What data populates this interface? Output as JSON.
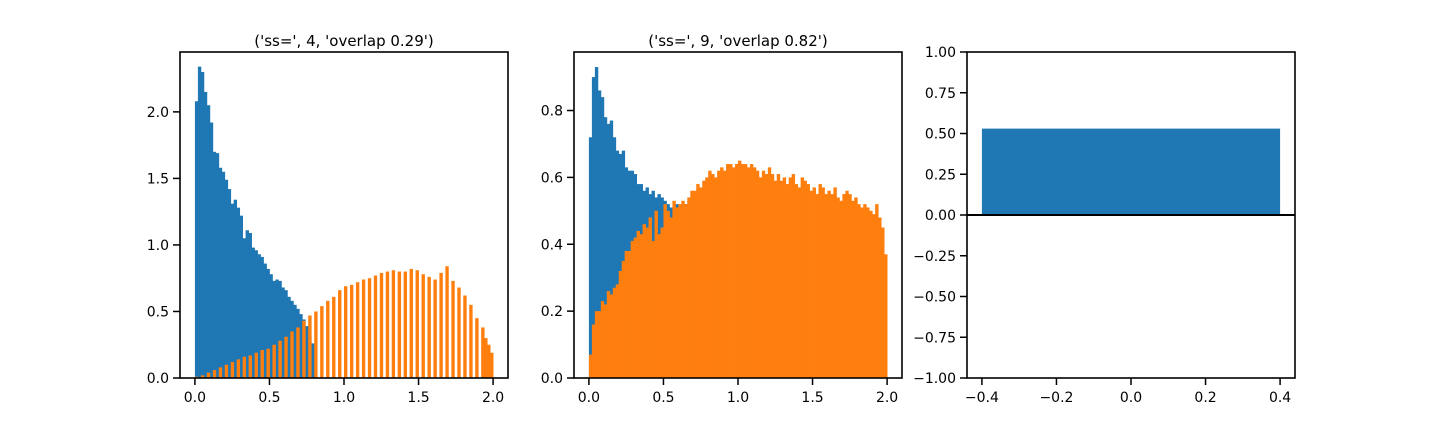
{
  "colors": {
    "blue": "#1f77b4",
    "orange": "#ff7f0e",
    "axis": "#000000",
    "background": "#ffffff"
  },
  "chart_data": [
    {
      "type": "bar",
      "title": "('ss=', 4, 'overlap 0.29')",
      "xlabel": "",
      "ylabel": "",
      "xlim": [
        -0.1,
        2.1
      ],
      "ylim": [
        0,
        2.45
      ],
      "xticks": [
        0.0,
        0.5,
        1.0,
        1.5,
        2.0
      ],
      "xtick_labels": [
        "0.0",
        "0.5",
        "1.0",
        "1.5",
        "2.0"
      ],
      "yticks": [
        0.0,
        0.5,
        1.0,
        1.5,
        2.0
      ],
      "ytick_labels": [
        "0.0",
        "0.5",
        "1.0",
        "1.5",
        "2.0"
      ],
      "grid": false,
      "bin_width": 0.02,
      "series": [
        {
          "color": "#1f77b4",
          "x": [
            0.01,
            0.03,
            0.05,
            0.07,
            0.09,
            0.11,
            0.13,
            0.15,
            0.17,
            0.19,
            0.21,
            0.23,
            0.25,
            0.27,
            0.29,
            0.31,
            0.33,
            0.35,
            0.37,
            0.39,
            0.41,
            0.43,
            0.45,
            0.47,
            0.49,
            0.51,
            0.53,
            0.55,
            0.57,
            0.59,
            0.61,
            0.63,
            0.65,
            0.67,
            0.69,
            0.71,
            0.73,
            0.75,
            0.77,
            0.79
          ],
          "values": [
            2.08,
            2.34,
            2.3,
            2.15,
            2.05,
            1.92,
            1.7,
            1.69,
            1.58,
            1.55,
            1.49,
            1.42,
            1.31,
            1.34,
            1.28,
            1.22,
            1.05,
            1.11,
            1.09,
            0.98,
            0.96,
            0.93,
            0.91,
            0.86,
            0.82,
            0.78,
            0.73,
            0.74,
            0.73,
            0.68,
            0.66,
            0.61,
            0.58,
            0.55,
            0.52,
            0.48,
            0.44,
            0.39,
            0.32,
            0.26
          ]
        },
        {
          "color": "#ff7f0e",
          "x": [
            0.01,
            0.05,
            0.09,
            0.13,
            0.17,
            0.21,
            0.25,
            0.29,
            0.33,
            0.37,
            0.41,
            0.45,
            0.49,
            0.53,
            0.57,
            0.61,
            0.65,
            0.69,
            0.73,
            0.77,
            0.81,
            0.85,
            0.89,
            0.93,
            0.97,
            1.01,
            1.05,
            1.09,
            1.13,
            1.17,
            1.21,
            1.25,
            1.29,
            1.33,
            1.37,
            1.41,
            1.45,
            1.49,
            1.53,
            1.57,
            1.61,
            1.65,
            1.69,
            1.73,
            1.77,
            1.81,
            1.85,
            1.89,
            1.93,
            1.95,
            1.97,
            1.99
          ],
          "values": [
            0.01,
            0.02,
            0.04,
            0.06,
            0.08,
            0.1,
            0.12,
            0.14,
            0.16,
            0.17,
            0.19,
            0.21,
            0.22,
            0.25,
            0.28,
            0.31,
            0.35,
            0.38,
            0.43,
            0.47,
            0.5,
            0.54,
            0.58,
            0.61,
            0.66,
            0.69,
            0.7,
            0.72,
            0.74,
            0.75,
            0.77,
            0.79,
            0.8,
            0.81,
            0.8,
            0.8,
            0.82,
            0.81,
            0.78,
            0.76,
            0.74,
            0.79,
            0.84,
            0.73,
            0.68,
            0.62,
            0.55,
            0.45,
            0.38,
            0.3,
            0.25,
            0.19
          ]
        }
      ]
    },
    {
      "type": "bar",
      "title": "('ss=', 9, 'overlap 0.82')",
      "xlabel": "",
      "ylabel": "",
      "xlim": [
        -0.1,
        2.1
      ],
      "ylim": [
        0,
        0.975
      ],
      "xticks": [
        0.0,
        0.5,
        1.0,
        1.5,
        2.0
      ],
      "xtick_labels": [
        "0.0",
        "0.5",
        "1.0",
        "1.5",
        "2.0"
      ],
      "yticks": [
        0.0,
        0.2,
        0.4,
        0.6,
        0.8
      ],
      "ytick_labels": [
        "0.0",
        "0.2",
        "0.4",
        "0.6",
        "0.8"
      ],
      "grid": false,
      "bin_width": 0.02,
      "series": [
        {
          "color": "#1f77b4",
          "x": [
            0.01,
            0.03,
            0.05,
            0.07,
            0.09,
            0.11,
            0.13,
            0.15,
            0.17,
            0.19,
            0.21,
            0.23,
            0.25,
            0.27,
            0.29,
            0.31,
            0.33,
            0.35,
            0.37,
            0.39,
            0.41,
            0.43,
            0.45,
            0.47,
            0.49,
            0.51,
            0.53,
            0.55,
            0.57,
            0.59,
            0.61,
            0.63,
            0.65,
            0.67,
            0.69,
            0.71,
            0.73,
            0.75,
            0.77,
            0.79
          ],
          "values": [
            0.72,
            0.9,
            0.93,
            0.86,
            0.84,
            0.78,
            0.76,
            0.77,
            0.72,
            0.68,
            0.67,
            0.68,
            0.63,
            0.62,
            0.62,
            0.61,
            0.58,
            0.58,
            0.56,
            0.57,
            0.55,
            0.56,
            0.54,
            0.55,
            0.54,
            0.53,
            0.52,
            0.51,
            0.5,
            0.52,
            0.51,
            0.51,
            0.52,
            0.53,
            0.54,
            0.53,
            0.52,
            0.54,
            0.55,
            0.56
          ]
        },
        {
          "color": "#ff7f0e",
          "x": [
            0.01,
            0.03,
            0.05,
            0.07,
            0.09,
            0.11,
            0.13,
            0.15,
            0.17,
            0.19,
            0.21,
            0.23,
            0.25,
            0.27,
            0.29,
            0.31,
            0.33,
            0.35,
            0.37,
            0.39,
            0.41,
            0.43,
            0.45,
            0.47,
            0.49,
            0.51,
            0.53,
            0.55,
            0.57,
            0.59,
            0.61,
            0.63,
            0.65,
            0.67,
            0.69,
            0.71,
            0.73,
            0.75,
            0.77,
            0.79,
            0.81,
            0.83,
            0.85,
            0.87,
            0.89,
            0.91,
            0.93,
            0.95,
            0.97,
            0.99,
            1.01,
            1.03,
            1.05,
            1.07,
            1.09,
            1.11,
            1.13,
            1.15,
            1.17,
            1.19,
            1.21,
            1.23,
            1.25,
            1.27,
            1.29,
            1.31,
            1.33,
            1.35,
            1.37,
            1.39,
            1.41,
            1.43,
            1.45,
            1.47,
            1.49,
            1.51,
            1.53,
            1.55,
            1.57,
            1.59,
            1.61,
            1.63,
            1.65,
            1.67,
            1.69,
            1.71,
            1.73,
            1.75,
            1.77,
            1.79,
            1.81,
            1.83,
            1.85,
            1.87,
            1.89,
            1.91,
            1.93,
            1.95,
            1.97,
            1.99
          ],
          "values": [
            0.07,
            0.16,
            0.2,
            0.2,
            0.23,
            0.22,
            0.26,
            0.25,
            0.27,
            0.28,
            0.32,
            0.35,
            0.38,
            0.38,
            0.41,
            0.42,
            0.44,
            0.43,
            0.46,
            0.45,
            0.48,
            0.41,
            0.5,
            0.43,
            0.45,
            0.52,
            0.5,
            0.48,
            0.53,
            0.51,
            0.52,
            0.53,
            0.52,
            0.54,
            0.56,
            0.56,
            0.58,
            0.57,
            0.59,
            0.6,
            0.62,
            0.61,
            0.6,
            0.62,
            0.63,
            0.62,
            0.64,
            0.64,
            0.63,
            0.64,
            0.65,
            0.64,
            0.64,
            0.63,
            0.64,
            0.63,
            0.62,
            0.6,
            0.62,
            0.61,
            0.63,
            0.61,
            0.59,
            0.61,
            0.59,
            0.6,
            0.58,
            0.6,
            0.61,
            0.58,
            0.57,
            0.6,
            0.59,
            0.58,
            0.56,
            0.57,
            0.55,
            0.58,
            0.57,
            0.55,
            0.56,
            0.55,
            0.57,
            0.54,
            0.53,
            0.55,
            0.56,
            0.55,
            0.53,
            0.54,
            0.52,
            0.51,
            0.52,
            0.51,
            0.5,
            0.49,
            0.52,
            0.48,
            0.45,
            0.37
          ]
        }
      ]
    },
    {
      "type": "bar",
      "title": "",
      "xlabel": "",
      "ylabel": "",
      "categories": [
        "0.0"
      ],
      "x": [
        0.0
      ],
      "values": [
        0.53
      ],
      "bar_width": 0.8,
      "color": "#1f77b4",
      "xlim": [
        -0.44,
        0.44
      ],
      "ylim": [
        -1.0,
        1.0
      ],
      "xticks": [
        -0.4,
        -0.2,
        0.0,
        0.2,
        0.4
      ],
      "xtick_labels": [
        "−0.4",
        "−0.2",
        "0.0",
        "0.2",
        "0.4"
      ],
      "yticks": [
        -1.0,
        -0.75,
        -0.5,
        -0.25,
        0.0,
        0.25,
        0.5,
        0.75,
        1.0
      ],
      "ytick_labels": [
        "−1.00",
        "−0.75",
        "−0.50",
        "−0.25",
        "0.00",
        "0.25",
        "0.50",
        "0.75",
        "1.00"
      ],
      "zero_line": true,
      "grid": false
    }
  ]
}
